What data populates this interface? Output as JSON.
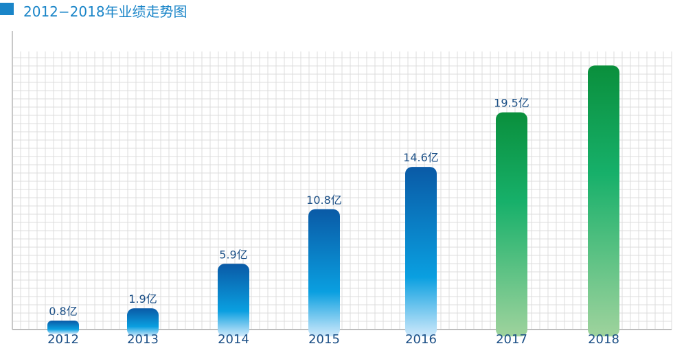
{
  "chart_title": "2012−2018年业绩走势图",
  "chart_data": {
    "type": "bar",
    "title": "2012−2018年业绩走势图",
    "categories": [
      "2012",
      "2013",
      "2014",
      "2015",
      "2016",
      "2017",
      "2018"
    ],
    "values": [
      0.8,
      1.9,
      5.9,
      10.8,
      14.6,
      19.5,
      23.7
    ],
    "data_labels": [
      "0.8亿",
      "1.9亿",
      "5.9亿",
      "10.8亿",
      "14.6亿",
      "19.5亿",
      ""
    ],
    "series_colors": [
      "blue",
      "blue",
      "blue",
      "blue",
      "blue",
      "green",
      "green"
    ],
    "ylim": [
      0,
      26.5
    ],
    "grid": true,
    "colors": {
      "title": "#1a85c8",
      "blue_top": "#0a5aa6",
      "blue_mid": "#0a9fe0",
      "blue_bottom": "#cfe9fb",
      "green_top": "#0a8f3c",
      "green_mid": "#17b06a",
      "green_bottom": "#9fd39d",
      "label": "#1b4f86",
      "grid": "#dcdcdc"
    }
  }
}
